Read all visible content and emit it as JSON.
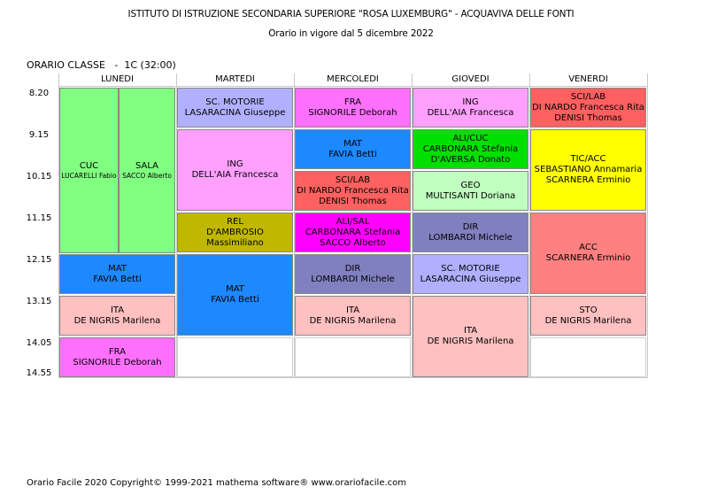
{
  "header": {
    "school": "ISTITUTO DI ISTRUZIONE SECONDARIA SUPERIORE \"ROSA LUXEMBURG\" - ACQUAVIVA DELLE FONTI",
    "validity": "Orario in vigore dal 5 dicembre 2022",
    "class_label": "ORARIO CLASSE   -  1C (32:00)"
  },
  "days": [
    "LUNEDI",
    "MARTEDI",
    "MERCOLEDI",
    "GIOVEDI",
    "VENERDI"
  ],
  "times": [
    "8.20",
    "9.15",
    "10.15",
    "11.15",
    "12.15",
    "13.15",
    "14.05",
    "14.55"
  ],
  "lessons": {
    "mon_cuc": {
      "subject": "CUC",
      "teacher": "LUCARELLI Fabio",
      "color": "#80ff80"
    },
    "mon_sala": {
      "subject": "SALA",
      "teacher": "SACCO Alberto",
      "color": "#80ff80"
    },
    "mon_mat": {
      "subject": "MAT",
      "teacher": "FAVIA Betti",
      "color": "#1e88ff"
    },
    "mon_ita": {
      "subject": "ITA",
      "teacher": "DE NIGRIS Marilena",
      "color": "#ffc0c0"
    },
    "mon_fra": {
      "subject": "FRA",
      "teacher": "SIGNORILE Deborah",
      "color": "#ff70ff"
    },
    "tue_sc": {
      "subject": "SC. MOTORIE",
      "teacher": "LASARACINA Giuseppe",
      "color": "#b0b0ff"
    },
    "tue_ing": {
      "subject": "ING",
      "teacher": "DELL'AIA Francesca",
      "color": "#ffa0ff"
    },
    "tue_rel": {
      "subject": "REL",
      "teacher": "D'AMBROSIO Massimiliano",
      "color": "#c0b800"
    },
    "tue_mat": {
      "subject": "MAT",
      "teacher": "FAVIA Betti",
      "color": "#1e88ff"
    },
    "wed_fra": {
      "subject": "FRA",
      "teacher": "SIGNORILE Deborah",
      "color": "#ff70ff"
    },
    "wed_mat": {
      "subject": "MAT",
      "teacher": "FAVIA Betti",
      "color": "#1e88ff"
    },
    "wed_sci": {
      "subject": "SCI/LAB",
      "teacher": "DI NARDO Francesca Rita",
      "teacher2": "DENISI Thomas",
      "color": "#ff6060"
    },
    "wed_ali": {
      "subject": "ALI/SAL",
      "teacher": "CARBONARA Stefania",
      "teacher2": "SACCO Alberto",
      "color": "#ff00ff"
    },
    "wed_dir": {
      "subject": "DIR",
      "teacher": "LOMBARDI Michele",
      "color": "#8080c0"
    },
    "wed_ita": {
      "subject": "ITA",
      "teacher": "DE NIGRIS Marilena",
      "color": "#ffc0c0"
    },
    "thu_ing": {
      "subject": "ING",
      "teacher": "DELL'AIA Francesca",
      "color": "#ffa0ff"
    },
    "thu_ali": {
      "subject": "ALI/CUC",
      "teacher": "CARBONARA Stefania",
      "teacher2": "D'AVERSA Donato",
      "color": "#00e000"
    },
    "thu_geo": {
      "subject": "GEO",
      "teacher": "MULTISANTI Doriana",
      "color": "#c0ffc0"
    },
    "thu_dir": {
      "subject": "DIR",
      "teacher": "LOMBARDI Michele",
      "color": "#8080c0"
    },
    "thu_sc": {
      "subject": "SC. MOTORIE",
      "teacher": "LASARACINA Giuseppe",
      "color": "#b0b0ff"
    },
    "thu_ita": {
      "subject": "ITA",
      "teacher": "DE NIGRIS Marilena",
      "color": "#ffc0c0"
    },
    "fri_sci": {
      "subject": "SCI/LAB",
      "teacher": "DI NARDO Francesca Rita",
      "teacher2": "DENISI Thomas",
      "color": "#ff6060"
    },
    "fri_tic": {
      "subject": "TIC/ACC",
      "teacher": "SEBASTIANO Annamaria",
      "teacher2": "SCARNERA Erminio",
      "color": "#ffff00"
    },
    "fri_acc": {
      "subject": "ACC",
      "teacher": "SCARNERA Erminio",
      "color": "#ff8080"
    },
    "fri_sto": {
      "subject": "STO",
      "teacher": "DE NIGRIS Marilena",
      "color": "#ffc0c0"
    }
  },
  "footer": "Orario Facile 2020  Copyright© 1999-2021 mathema software®    www.orariofacile.com"
}
